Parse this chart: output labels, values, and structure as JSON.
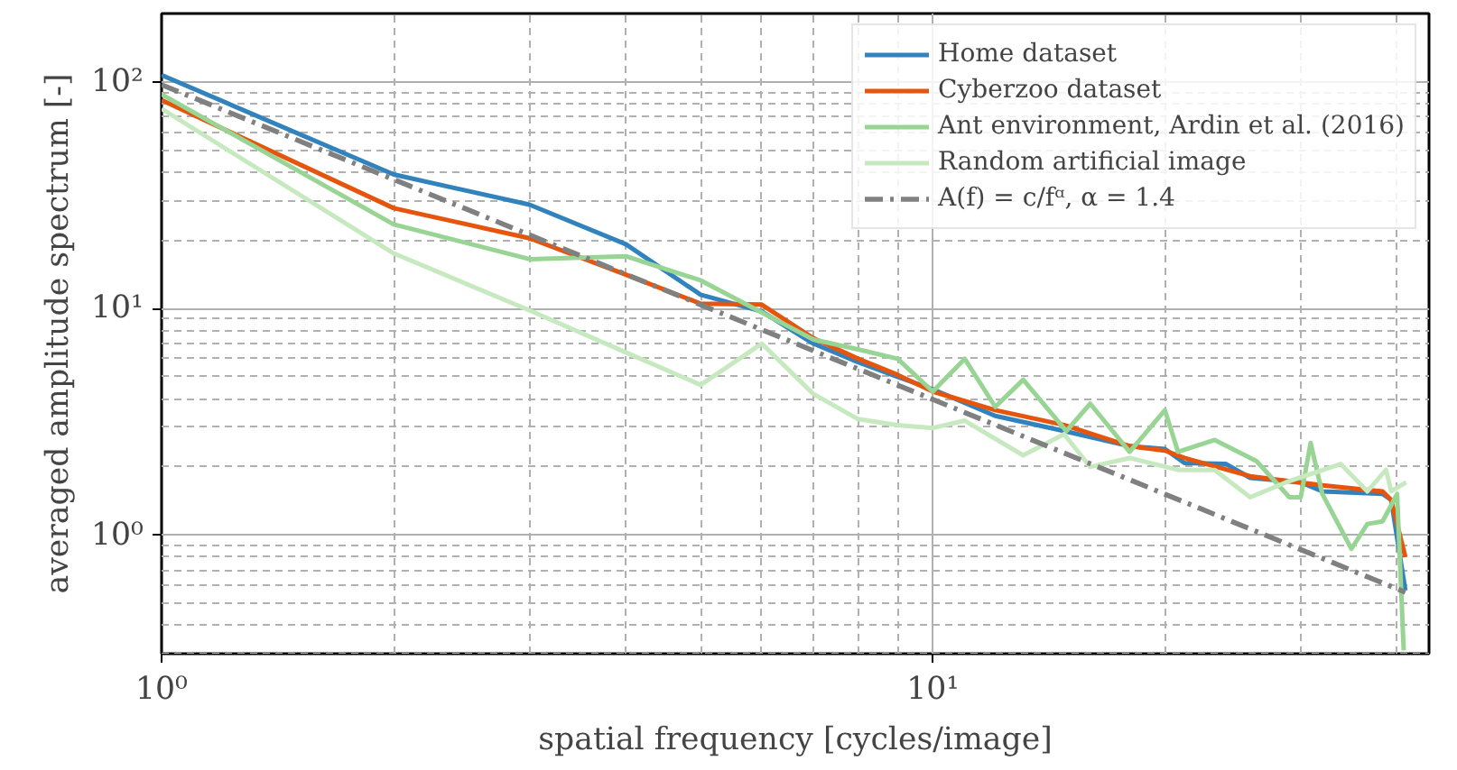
{
  "chart_data": {
    "type": "line",
    "xlabel": "spatial frequency [cycles/image]",
    "ylabel": "averaged amplitude spectrum [-]",
    "log": "xy",
    "grid": true,
    "legend": "top right",
    "line_style": "solid",
    "marker": "none",
    "xlim": [
      1,
      44
    ],
    "ylim": [
      0.3,
      200
    ],
    "xticks": [
      {
        "value": 1,
        "label": "10⁰"
      },
      {
        "value": 10,
        "label": "10¹"
      }
    ],
    "yticks": [
      {
        "value": 1,
        "label": "10⁰"
      },
      {
        "value": 10,
        "label": "10¹"
      },
      {
        "value": 100,
        "label": "10²"
      }
    ],
    "series": [
      {
        "name": "Home dataset",
        "color": "#3182bd",
        "x": [
          1,
          2,
          3,
          4,
          5,
          6,
          7,
          8,
          9,
          10,
          12.05,
          14.8,
          18,
          20,
          21.2,
          24,
          25.8,
          30,
          32,
          38.3,
          39.3,
          41
        ],
        "values": [
          107,
          39,
          28.7,
          19.2,
          11.5,
          9.7,
          7.0,
          5.8,
          5.0,
          4.4,
          3.36,
          2.88,
          2.47,
          2.4,
          2.08,
          2.06,
          1.79,
          1.71,
          1.56,
          1.52,
          1.43,
          0.57
        ]
      },
      {
        "name": "Cyberzoo dataset",
        "color": "#e6550d",
        "x": [
          1,
          2,
          3,
          4,
          5,
          6,
          7,
          8,
          9,
          10,
          12.05,
          14.8,
          18,
          20,
          21.2,
          25.8,
          32,
          38.3,
          39.3,
          41
        ],
        "values": [
          83,
          27.7,
          20.4,
          14.1,
          10.5,
          10.4,
          7.4,
          6.0,
          5.1,
          4.3,
          3.56,
          3.06,
          2.47,
          2.36,
          2.19,
          1.82,
          1.66,
          1.56,
          1.43,
          0.8
        ]
      },
      {
        "name": "Ant environment, Ardin et al. (2016)",
        "color": "#98d594",
        "x": [
          1,
          2,
          3,
          4,
          5,
          6,
          7,
          8,
          9,
          10,
          11,
          12.05,
          13.1,
          14.9,
          16,
          18,
          20,
          20.8,
          23.2,
          26.3,
          29,
          30,
          30.9,
          32,
          34.9,
          36.6,
          38.3,
          40,
          40.8
        ],
        "values": [
          88,
          23.5,
          16.5,
          17,
          13.3,
          9.6,
          7.3,
          6.6,
          6.0,
          4.3,
          6.0,
          3.68,
          4.85,
          2.88,
          3.8,
          2.33,
          3.56,
          2.33,
          2.63,
          2.12,
          1.47,
          1.47,
          2.55,
          1.52,
          0.87,
          1.12,
          1.15,
          1.52,
          0.31
        ]
      },
      {
        "name": "Random artificial image",
        "color": "#c7e9c0",
        "x": [
          1,
          2,
          3,
          4,
          5,
          6,
          7,
          8,
          9,
          10,
          11,
          13.1,
          14.8,
          16,
          18,
          20.8,
          23.2,
          25.8,
          28.7,
          33.8,
          36.6,
          38.7,
          39.3,
          41.1
        ],
        "values": [
          76,
          17.5,
          9.8,
          6.4,
          4.6,
          7.0,
          4.2,
          3.25,
          3.06,
          2.97,
          3.2,
          2.25,
          2.79,
          2.0,
          2.19,
          1.94,
          1.94,
          1.47,
          1.71,
          2.06,
          1.56,
          1.94,
          1.56,
          1.71
        ]
      },
      {
        "name": "A(f) = c/fᵅ, α = 1.4",
        "color": "#808080",
        "line_style": "dashdot",
        "x": [
          1,
          41
        ],
        "values": [
          97,
          0.56
        ]
      }
    ]
  }
}
